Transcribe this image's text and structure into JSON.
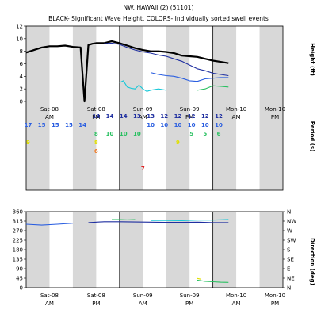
{
  "title": "NW. HAWAII (2) (51101)",
  "subtitle": "BLACK- Significant Wave Height.  COLORS- Individually sorted swell events",
  "time_ticks": [
    "Sat-08 AM",
    "Sat-08 PM",
    "Sun-09 AM",
    "Sun-09 PM",
    "Mon-10 AM",
    "Mon-10 PM"
  ],
  "colors": {
    "sig_height": "#000000",
    "swell_navy": "#1f2fa0",
    "swell_blue": "#2a5ee0",
    "swell_cyan": "#18c8d8",
    "swell_green": "#28c060",
    "swell_yellow": "#e0e000",
    "swell_orange": "#f07820",
    "swell_red": "#e02020",
    "shade": "#d8d8d8"
  },
  "chart_data": [
    {
      "type": "line",
      "name": "height-period-panel",
      "ylabel": "Height (ft)",
      "ylabel2": "Period (s)",
      "ylim": [
        0,
        12
      ],
      "yticks": [
        0,
        2,
        4,
        6,
        8,
        10,
        12
      ],
      "xlim": [
        0,
        66
      ],
      "x_unit_note": "hours from start of Sat-08",
      "series": [
        {
          "color": "sig_height",
          "x": [
            0,
            2,
            4,
            6,
            8,
            10,
            12,
            14,
            15,
            16,
            17,
            18,
            20,
            22,
            24,
            26,
            28,
            30,
            32,
            34,
            36,
            38,
            40,
            42,
            44,
            46,
            48,
            50,
            52
          ],
          "y": [
            7.8,
            8.2,
            8.6,
            8.8,
            8.8,
            8.9,
            8.7,
            8.6,
            0.0,
            9.0,
            9.2,
            9.3,
            9.3,
            9.6,
            9.3,
            8.9,
            8.5,
            8.2,
            8.0,
            8.0,
            7.9,
            7.7,
            7.3,
            7.2,
            7.1,
            6.8,
            6.5,
            6.3,
            6.1
          ]
        },
        {
          "color": "swell_navy",
          "x": [
            20,
            22,
            24,
            26,
            28,
            30,
            32,
            34,
            36,
            38,
            40,
            42,
            44,
            46,
            48,
            50,
            52
          ],
          "y": [
            9.2,
            9.3,
            9.1,
            8.6,
            8.2,
            7.9,
            7.7,
            7.4,
            7.2,
            6.8,
            6.4,
            5.8,
            5.2,
            4.9,
            4.5,
            4.3,
            4.1
          ]
        },
        {
          "color": "swell_blue",
          "x": [
            32,
            34,
            36,
            38,
            40,
            42,
            44,
            46,
            48,
            50,
            52
          ],
          "y": [
            4.6,
            4.3,
            4.1,
            4.0,
            3.7,
            3.3,
            3.2,
            3.6,
            3.7,
            3.8,
            3.8
          ]
        },
        {
          "color": "swell_cyan",
          "x": [
            24,
            25,
            26,
            27,
            28,
            29,
            30,
            31,
            32,
            34,
            36
          ],
          "y": [
            3.0,
            3.3,
            2.3,
            2.1,
            2.0,
            2.6,
            2.0,
            1.6,
            1.8,
            2.0,
            1.8
          ]
        },
        {
          "color": "swell_green",
          "x": [
            44,
            46,
            48,
            50,
            52
          ],
          "y": [
            1.8,
            2.0,
            2.5,
            2.4,
            2.3
          ]
        }
      ],
      "period_labels": [
        {
          "x": 0.5,
          "row": 0,
          "text": "17",
          "color": "swell_blue"
        },
        {
          "x": 4,
          "row": 0,
          "text": "15",
          "color": "swell_blue"
        },
        {
          "x": 7.5,
          "row": 0,
          "text": "15",
          "color": "swell_blue"
        },
        {
          "x": 11,
          "row": 0,
          "text": "15",
          "color": "swell_blue"
        },
        {
          "x": 14.5,
          "row": 0,
          "text": "14",
          "color": "swell_blue"
        },
        {
          "x": 18,
          "row": -1,
          "text": "14",
          "color": "swell_navy"
        },
        {
          "x": 21.5,
          "row": -1,
          "text": "14",
          "color": "swell_navy"
        },
        {
          "x": 25,
          "row": -1,
          "text": "14",
          "color": "swell_navy"
        },
        {
          "x": 28.5,
          "row": -1,
          "text": "13",
          "color": "swell_navy"
        },
        {
          "x": 32,
          "row": -1,
          "text": "13",
          "color": "swell_navy"
        },
        {
          "x": 35.5,
          "row": -1,
          "text": "12",
          "color": "swell_navy"
        },
        {
          "x": 39,
          "row": -1,
          "text": "12",
          "color": "swell_navy"
        },
        {
          "x": 42.5,
          "row": -1,
          "text": "12",
          "color": "swell_navy"
        },
        {
          "x": 46,
          "row": -1,
          "text": "12",
          "color": "swell_navy"
        },
        {
          "x": 49.5,
          "row": -1,
          "text": "12",
          "color": "swell_navy"
        },
        {
          "x": 32,
          "row": 0,
          "text": "10",
          "color": "swell_blue"
        },
        {
          "x": 35.5,
          "row": 0,
          "text": "10",
          "color": "swell_blue"
        },
        {
          "x": 39,
          "row": 0,
          "text": "10",
          "color": "swell_blue"
        },
        {
          "x": 42.5,
          "row": 0,
          "text": "10",
          "color": "swell_blue"
        },
        {
          "x": 46,
          "row": 0,
          "text": "10",
          "color": "swell_blue"
        },
        {
          "x": 49.5,
          "row": 0,
          "text": "10",
          "color": "swell_blue"
        },
        {
          "x": 21.5,
          "row": 1,
          "text": "10",
          "color": "swell_green"
        },
        {
          "x": 25,
          "row": 1,
          "text": "10",
          "color": "swell_green"
        },
        {
          "x": 28.5,
          "row": 1,
          "text": "10",
          "color": "swell_green"
        },
        {
          "x": 42.5,
          "row": 1,
          "text": "5",
          "color": "swell_green"
        },
        {
          "x": 46,
          "row": 1,
          "text": "5",
          "color": "swell_green"
        },
        {
          "x": 49.5,
          "row": 1,
          "text": "6",
          "color": "swell_green"
        },
        {
          "x": 18,
          "row": 1,
          "text": "8",
          "color": "swell_green"
        },
        {
          "x": 0.5,
          "row": 2,
          "text": "9",
          "color": "swell_yellow"
        },
        {
          "x": 39,
          "row": 2,
          "text": "9",
          "color": "swell_yellow"
        },
        {
          "x": 18,
          "row": 2,
          "text": "8",
          "color": "swell_yellow"
        },
        {
          "x": 18,
          "row": 3,
          "text": "6",
          "color": "swell_orange"
        },
        {
          "x": 30,
          "row": 5,
          "text": "7",
          "color": "swell_red"
        }
      ]
    },
    {
      "type": "line",
      "name": "direction-panel",
      "ylabel": "Direction (deg)",
      "ylim": [
        0,
        360
      ],
      "yticks": [
        0,
        45,
        90,
        135,
        180,
        225,
        270,
        315,
        360
      ],
      "compass": [
        "N",
        "NE",
        "E",
        "SE",
        "S",
        "SW",
        "W",
        "NW",
        "N"
      ],
      "xlim": [
        0,
        66
      ],
      "series": [
        {
          "color": "swell_blue",
          "x": [
            0,
            4,
            8,
            12
          ],
          "y": [
            300,
            296,
            300,
            305
          ]
        },
        {
          "color": "swell_navy",
          "x": [
            16,
            20,
            24,
            28,
            32,
            36,
            40,
            44,
            48,
            52
          ],
          "y": [
            308,
            312,
            312,
            311,
            310,
            309,
            309,
            310,
            308,
            308
          ]
        },
        {
          "color": "swell_green",
          "x": [
            22,
            24,
            26,
            28
          ],
          "y": [
            322,
            322,
            321,
            322
          ]
        },
        {
          "color": "swell_cyan",
          "x": [
            32,
            36,
            40,
            44,
            48,
            52
          ],
          "y": [
            318,
            318,
            317,
            320,
            320,
            323
          ]
        },
        {
          "color": "swell_green",
          "x": [
            44,
            46,
            48,
            50,
            52
          ],
          "y": [
            36,
            30,
            28,
            26,
            25
          ]
        },
        {
          "color": "swell_yellow",
          "x": [
            44,
            45
          ],
          "y": [
            44,
            40
          ]
        }
      ]
    }
  ]
}
